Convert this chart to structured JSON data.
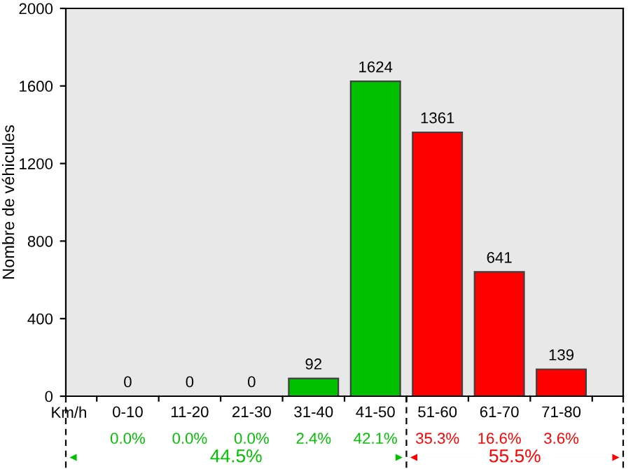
{
  "chart_data": {
    "type": "bar",
    "ylabel": "Nombre de véhicules",
    "xlabel": "Km/h",
    "categories": [
      "0-10",
      "11-20",
      "21-30",
      "31-40",
      "41-50",
      "51-60",
      "61-70",
      "71-80"
    ],
    "values": [
      0,
      0,
      0,
      92,
      1624,
      1361,
      641,
      139
    ],
    "colors": [
      "#00c000",
      "#00c000",
      "#00c000",
      "#00c000",
      "#00c000",
      "#ff0000",
      "#ff0000",
      "#ff0000"
    ],
    "ylim": [
      0,
      2000
    ],
    "yticks": [
      0,
      400,
      800,
      1200,
      1600,
      2000
    ],
    "grid": false,
    "data_labels": true,
    "annotations": [
      "0.0%",
      "0.0%",
      "0.0%",
      "2.4%",
      "42.1%",
      "35.3%",
      "16.6%",
      "3.6%",
      "44.5%",
      "55.5%"
    ]
  }
}
